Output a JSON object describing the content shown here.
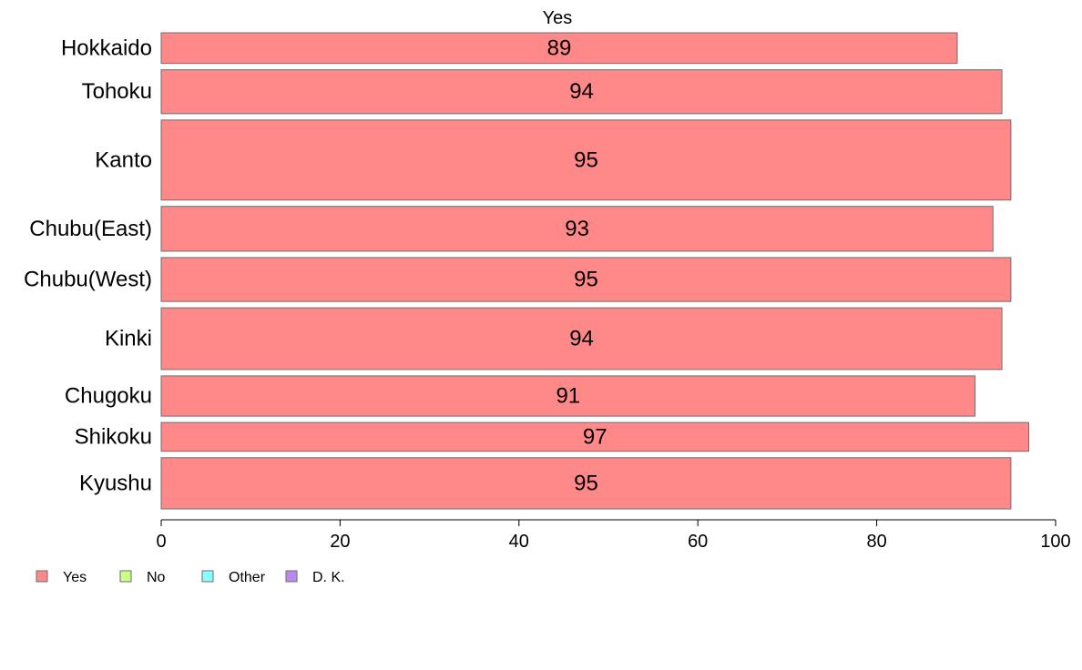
{
  "chart_data": {
    "type": "bar",
    "orientation": "horizontal",
    "title": "Yes",
    "categories": [
      "Hokkaido",
      "Tohoku",
      "Kanto",
      "Chubu(East)",
      "Chubu(West)",
      "Kinki",
      "Chugoku",
      "Shikoku",
      "Kyushu"
    ],
    "series": [
      {
        "name": "Yes",
        "values": [
          89,
          94,
          95,
          93,
          95,
          94,
          91,
          97,
          95
        ],
        "color": "#ff8888"
      }
    ],
    "category_weights": [
      0.67,
      0.96,
      1.75,
      0.98,
      0.96,
      1.35,
      0.88,
      0.63,
      1.12
    ],
    "xlim": [
      0,
      100
    ],
    "xticks": [
      "0",
      "20",
      "40",
      "60",
      "80",
      "100"
    ],
    "grid": false,
    "legend": {
      "placement": "bottom-left",
      "items": [
        {
          "label": "Yes",
          "color": "#ff8888"
        },
        {
          "label": "No",
          "color": "#ccff88"
        },
        {
          "label": "Other",
          "color": "#88ffff"
        },
        {
          "label": "D. K.",
          "color": "#bb88ee"
        }
      ]
    }
  }
}
